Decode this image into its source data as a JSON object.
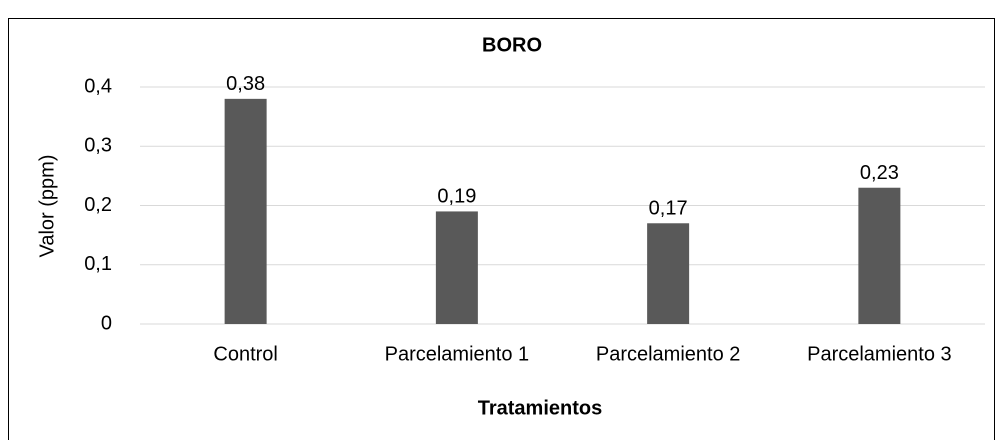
{
  "chart_data": {
    "type": "bar",
    "title": "BORO",
    "x_label": "Tratamientos",
    "y_label": "Valor (ppm)",
    "categories": [
      "Control",
      "Parcelamiento 1",
      "Parcelamiento 2",
      "Parcelamiento 3"
    ],
    "values": [
      0.38,
      0.19,
      0.17,
      0.23
    ],
    "value_labels": [
      "0,38",
      "0,19",
      "0,17",
      "0,23"
    ],
    "color": "#595959",
    "ylim": [
      0,
      0.4
    ],
    "yticks": [
      0,
      {
        "value": 0.1,
        "label": "0,1"
      },
      {
        "value": 0.2,
        "label": "0,2"
      },
      {
        "value": 0.3,
        "label": "0,3"
      },
      {
        "value": 0.4,
        "label": "0,4"
      }
    ],
    "grid": true
  }
}
